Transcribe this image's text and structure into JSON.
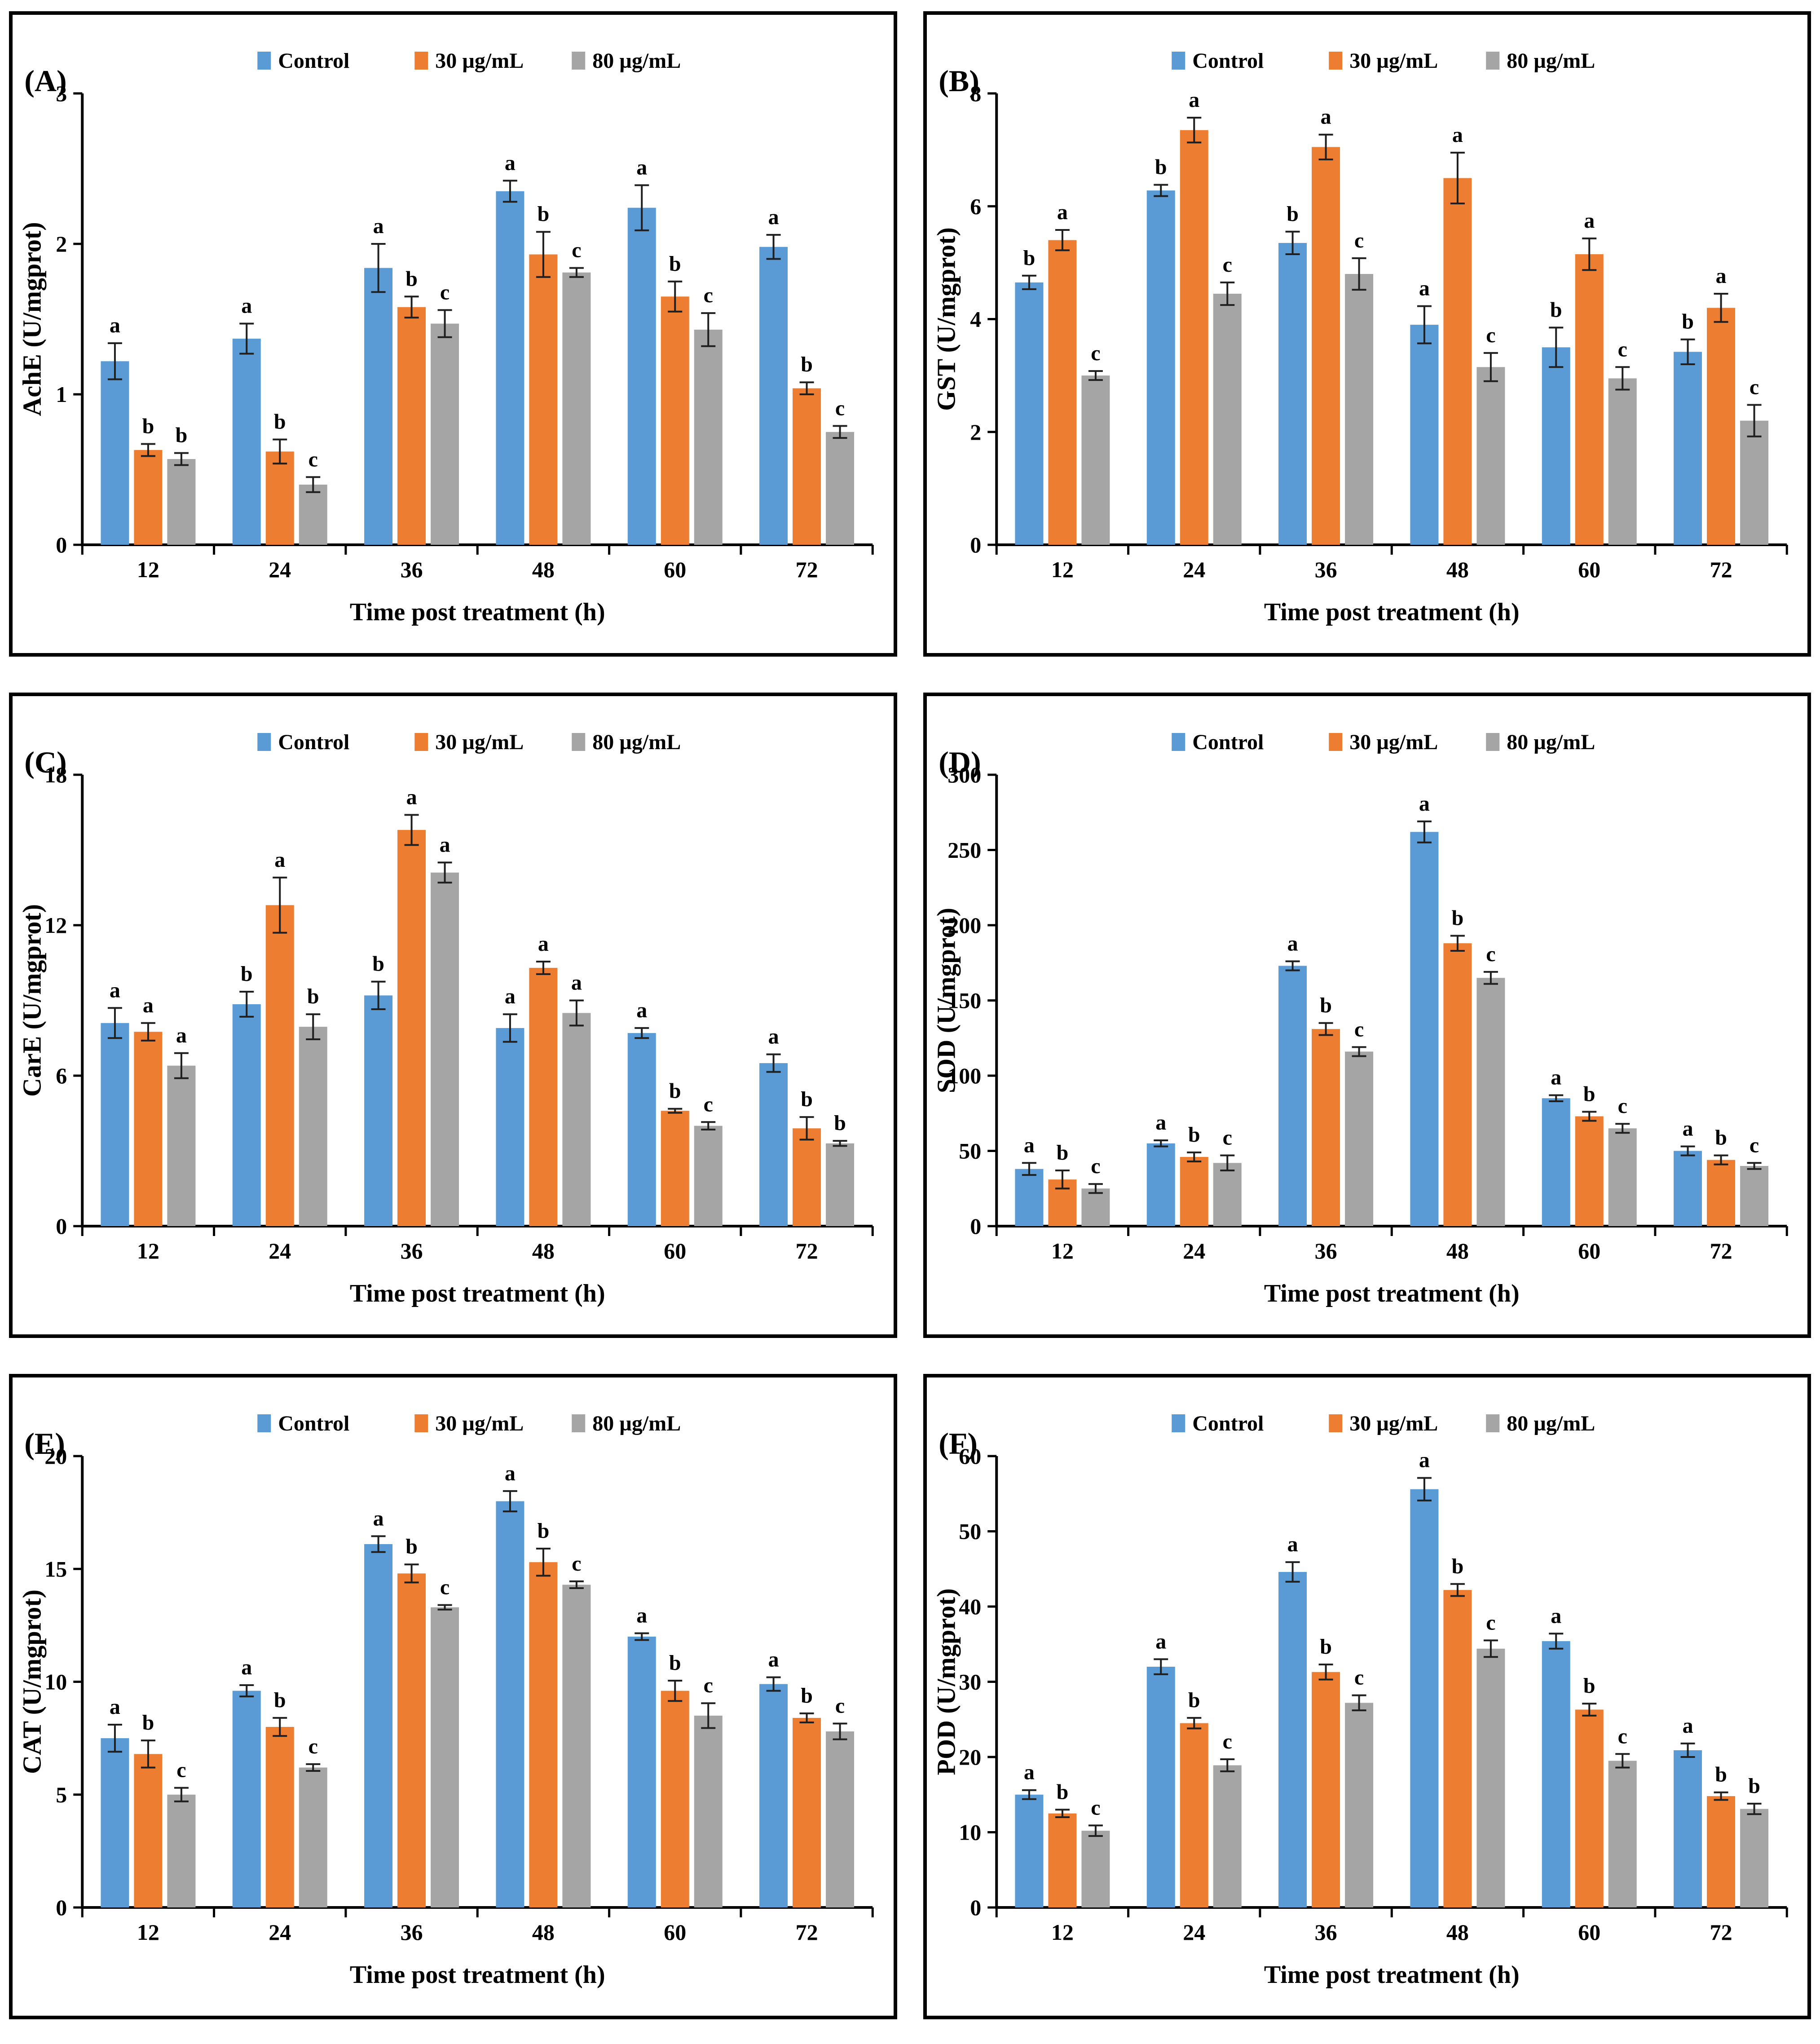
{
  "figure": {
    "xlabel": "Time post treatment (h)",
    "legend_labels": [
      "Control",
      "30 µg/mL",
      "80 µg/mL"
    ],
    "colors": {
      "control": "#5B9BD5",
      "dose30": "#ED7D31",
      "dose80": "#A5A5A5",
      "error_bar": "#1f1f1f",
      "axis": "#000000"
    }
  },
  "chart_data": [
    {
      "type": "bar",
      "panel_label": "(A)",
      "ylabel": "AchE (U/mgprot)",
      "xlabel": "Time post treatment (h)",
      "ylim": [
        0,
        3
      ],
      "yticks": [
        0,
        1,
        2,
        3
      ],
      "categories": [
        "12",
        "24",
        "36",
        "48",
        "60",
        "72"
      ],
      "grid": false,
      "legend_position": "top",
      "series": [
        {
          "name": "Control",
          "color": "#5B9BD5",
          "values": [
            1.22,
            1.37,
            1.84,
            2.35,
            2.24,
            1.98
          ],
          "errors": [
            0.12,
            0.1,
            0.16,
            0.07,
            0.15,
            0.08
          ],
          "letters": [
            "a",
            "a",
            "a",
            "a",
            "a",
            "a"
          ]
        },
        {
          "name": "30 µg/mL",
          "color": "#ED7D31",
          "values": [
            0.63,
            0.62,
            1.58,
            1.93,
            1.65,
            1.04
          ],
          "errors": [
            0.04,
            0.08,
            0.07,
            0.15,
            0.1,
            0.04
          ],
          "letters": [
            "b",
            "b",
            "b",
            "b",
            "b",
            "b"
          ]
        },
        {
          "name": "80 µg/mL",
          "color": "#A5A5A5",
          "values": [
            0.57,
            0.4,
            1.47,
            1.81,
            1.43,
            0.75
          ],
          "errors": [
            0.04,
            0.05,
            0.09,
            0.03,
            0.11,
            0.04
          ],
          "letters": [
            "b",
            "c",
            "c",
            "c",
            "c",
            "c"
          ]
        }
      ]
    },
    {
      "type": "bar",
      "panel_label": "(B)",
      "ylabel": "GST (U/mgprot)",
      "xlabel": "Time post treatment (h)",
      "ylim": [
        0,
        8
      ],
      "yticks": [
        0,
        2,
        4,
        6,
        8
      ],
      "categories": [
        "12",
        "24",
        "36",
        "48",
        "60",
        "72"
      ],
      "grid": false,
      "legend_position": "top",
      "series": [
        {
          "name": "Control",
          "color": "#5B9BD5",
          "values": [
            4.65,
            6.28,
            5.35,
            3.9,
            3.5,
            3.42
          ],
          "errors": [
            0.12,
            0.1,
            0.2,
            0.33,
            0.35,
            0.22
          ],
          "letters": [
            "b",
            "b",
            "b",
            "a",
            "b",
            "b"
          ]
        },
        {
          "name": "30 µg/mL",
          "color": "#ED7D31",
          "values": [
            5.4,
            7.35,
            7.05,
            6.5,
            5.15,
            4.2
          ],
          "errors": [
            0.18,
            0.22,
            0.22,
            0.45,
            0.28,
            0.25
          ],
          "letters": [
            "a",
            "a",
            "a",
            "a",
            "a",
            "a"
          ]
        },
        {
          "name": "80 µg/mL",
          "color": "#A5A5A5",
          "values": [
            3.0,
            4.45,
            4.8,
            3.15,
            2.95,
            2.2
          ],
          "errors": [
            0.08,
            0.2,
            0.28,
            0.25,
            0.2,
            0.28
          ],
          "letters": [
            "c",
            "c",
            "c",
            "c",
            "c",
            "c"
          ]
        }
      ]
    },
    {
      "type": "bar",
      "panel_label": "(C)",
      "ylabel": "CarE (U/mgprot)",
      "xlabel": "Time post treatment (h)",
      "ylim": [
        0,
        18
      ],
      "yticks": [
        0,
        6,
        12,
        18
      ],
      "categories": [
        "12",
        "24",
        "36",
        "48",
        "60",
        "72"
      ],
      "grid": false,
      "legend_position": "top",
      "series": [
        {
          "name": "Control",
          "color": "#5B9BD5",
          "values": [
            8.1,
            8.85,
            9.2,
            7.9,
            7.7,
            6.5
          ],
          "errors": [
            0.6,
            0.5,
            0.55,
            0.55,
            0.2,
            0.35
          ],
          "letters": [
            "a",
            "b",
            "b",
            "a",
            "a",
            "a"
          ]
        },
        {
          "name": "30 µg/mL",
          "color": "#ED7D31",
          "values": [
            7.75,
            12.8,
            15.8,
            10.3,
            4.6,
            3.9
          ],
          "errors": [
            0.35,
            1.1,
            0.6,
            0.25,
            0.08,
            0.45
          ],
          "letters": [
            "a",
            "a",
            "a",
            "a",
            "b",
            "b"
          ]
        },
        {
          "name": "80 µg/mL",
          "color": "#A5A5A5",
          "values": [
            6.4,
            7.95,
            14.1,
            8.5,
            4.0,
            3.3
          ],
          "errors": [
            0.5,
            0.5,
            0.4,
            0.5,
            0.15,
            0.1
          ],
          "letters": [
            "a",
            "b",
            "a",
            "a",
            "c",
            "b"
          ]
        }
      ]
    },
    {
      "type": "bar",
      "panel_label": "(D)",
      "ylabel": "SOD (U/mgprot)",
      "xlabel": "Time post treatment (h)",
      "ylim": [
        0,
        300
      ],
      "yticks": [
        0,
        50,
        100,
        150,
        200,
        250,
        300
      ],
      "categories": [
        "12",
        "24",
        "36",
        "48",
        "60",
        "72"
      ],
      "grid": false,
      "legend_position": "top",
      "series": [
        {
          "name": "Control",
          "color": "#5B9BD5",
          "values": [
            38,
            55,
            173,
            262,
            85,
            50
          ],
          "errors": [
            4,
            2,
            3,
            7,
            2,
            3
          ],
          "letters": [
            "a",
            "a",
            "a",
            "a",
            "a",
            "a"
          ]
        },
        {
          "name": "30 µg/mL",
          "color": "#ED7D31",
          "values": [
            31,
            46,
            131,
            188,
            73,
            44
          ],
          "errors": [
            6,
            3,
            4,
            5,
            3,
            3
          ],
          "letters": [
            "b",
            "b",
            "b",
            "b",
            "b",
            "b"
          ]
        },
        {
          "name": "80 µg/mL",
          "color": "#A5A5A5",
          "values": [
            25,
            42,
            116,
            165,
            65,
            40
          ],
          "errors": [
            3,
            5,
            3,
            4,
            3,
            2
          ],
          "letters": [
            "c",
            "c",
            "c",
            "c",
            "c",
            "c"
          ]
        }
      ]
    },
    {
      "type": "bar",
      "panel_label": "(E)",
      "ylabel": "CAT (U/mgprot)",
      "xlabel": "Time post treatment (h)",
      "ylim": [
        0,
        20
      ],
      "yticks": [
        0,
        5,
        10,
        15,
        20
      ],
      "categories": [
        "12",
        "24",
        "36",
        "48",
        "60",
        "72"
      ],
      "grid": false,
      "legend_position": "top",
      "series": [
        {
          "name": "Control",
          "color": "#5B9BD5",
          "values": [
            7.5,
            9.6,
            16.1,
            18.0,
            12.0,
            9.9
          ],
          "errors": [
            0.6,
            0.25,
            0.35,
            0.45,
            0.15,
            0.3
          ],
          "letters": [
            "a",
            "a",
            "a",
            "a",
            "a",
            "a"
          ]
        },
        {
          "name": "30 µg/mL",
          "color": "#ED7D31",
          "values": [
            6.8,
            8.0,
            14.8,
            15.3,
            9.6,
            8.4
          ],
          "errors": [
            0.6,
            0.4,
            0.4,
            0.6,
            0.45,
            0.2
          ],
          "letters": [
            "b",
            "b",
            "b",
            "b",
            "b",
            "b"
          ]
        },
        {
          "name": "80 µg/mL",
          "color": "#A5A5A5",
          "values": [
            5.0,
            6.2,
            13.3,
            14.3,
            8.5,
            7.8
          ],
          "errors": [
            0.3,
            0.15,
            0.1,
            0.15,
            0.55,
            0.35
          ],
          "letters": [
            "c",
            "c",
            "c",
            "c",
            "c",
            "c"
          ]
        }
      ]
    },
    {
      "type": "bar",
      "panel_label": "(F)",
      "ylabel": "POD (U/mgprot)",
      "xlabel": "Time post treatment (h)",
      "ylim": [
        0,
        60
      ],
      "yticks": [
        0,
        10,
        20,
        30,
        40,
        50,
        60
      ],
      "categories": [
        "12",
        "24",
        "36",
        "48",
        "60",
        "72"
      ],
      "grid": false,
      "legend_position": "top",
      "series": [
        {
          "name": "Control",
          "color": "#5B9BD5",
          "values": [
            15.0,
            32.0,
            44.6,
            55.6,
            35.4,
            20.9
          ],
          "errors": [
            0.6,
            1.0,
            1.3,
            1.5,
            1.0,
            0.9
          ],
          "letters": [
            "a",
            "a",
            "a",
            "a",
            "a",
            "a"
          ]
        },
        {
          "name": "30 µg/mL",
          "color": "#ED7D31",
          "values": [
            12.5,
            24.5,
            31.3,
            42.2,
            26.3,
            14.8
          ],
          "errors": [
            0.5,
            0.7,
            1.0,
            0.8,
            0.8,
            0.5
          ],
          "letters": [
            "b",
            "b",
            "b",
            "b",
            "b",
            "b"
          ]
        },
        {
          "name": "80 µg/mL",
          "color": "#A5A5A5",
          "values": [
            10.2,
            18.9,
            27.2,
            34.4,
            19.5,
            13.1
          ],
          "errors": [
            0.7,
            0.8,
            1.0,
            1.1,
            0.9,
            0.7
          ],
          "letters": [
            "c",
            "c",
            "c",
            "c",
            "c",
            "b"
          ]
        }
      ]
    }
  ]
}
